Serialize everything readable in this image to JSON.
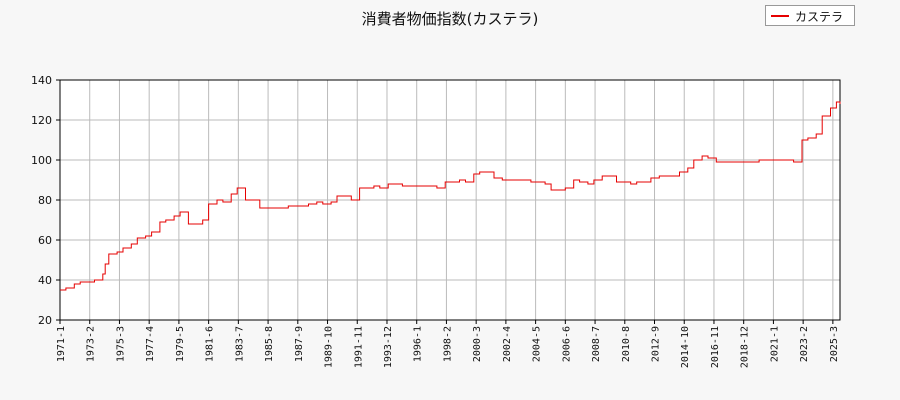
{
  "chart_data": {
    "type": "line",
    "title": "消費者物価指数(カステラ)",
    "xlabel": "",
    "ylabel": "",
    "ylim": [
      20,
      140
    ],
    "yticks": [
      20,
      40,
      60,
      80,
      100,
      120,
      140
    ],
    "grid": true,
    "legend_position": "top-right",
    "colors": {
      "series": "#e60000",
      "grid": "#bbbbbb",
      "axis": "#000000"
    },
    "x_tick_labels": [
      "1971-1",
      "1973-2",
      "1975-3",
      "1977-4",
      "1979-5",
      "1981-6",
      "1983-7",
      "1985-8",
      "1987-9",
      "1989-10",
      "1991-11",
      "1993-12",
      "1996-1",
      "1998-2",
      "2000-3",
      "2002-4",
      "2004-5",
      "2006-6",
      "2008-7",
      "2010-8",
      "2012-9",
      "2014-10",
      "2016-11",
      "2018-12",
      "2021-1",
      "2023-2",
      "2025-3"
    ],
    "series": [
      {
        "name": "カステラ",
        "x": [
          "1971-1",
          "1971-6",
          "1972-1",
          "1972-6",
          "1973-1",
          "1973-6",
          "1974-1",
          "1974-3",
          "1974-6",
          "1975-1",
          "1975-6",
          "1976-1",
          "1976-6",
          "1977-1",
          "1977-6",
          "1978-1",
          "1978-6",
          "1979-1",
          "1979-6",
          "1980-1",
          "1980-6",
          "1981-1",
          "1981-6",
          "1982-1",
          "1982-6",
          "1983-1",
          "1983-6",
          "1984-1",
          "1985-1",
          "1986-1",
          "1987-1",
          "1988-1",
          "1988-6",
          "1989-1",
          "1989-6",
          "1990-1",
          "1990-6",
          "1991-1",
          "1991-6",
          "1992-1",
          "1993-1",
          "1993-6",
          "1994-1",
          "1995-1",
          "1996-1",
          "1997-1",
          "1997-6",
          "1998-1",
          "1999-1",
          "1999-6",
          "2000-1",
          "2000-6",
          "2001-1",
          "2001-6",
          "2002-1",
          "2003-1",
          "2004-1",
          "2004-6",
          "2005-1",
          "2005-6",
          "2006-1",
          "2006-6",
          "2007-1",
          "2007-6",
          "2008-1",
          "2008-6",
          "2009-1",
          "2010-1",
          "2011-1",
          "2011-6",
          "2012-1",
          "2012-6",
          "2013-1",
          "2014-1",
          "2014-6",
          "2015-1",
          "2015-6",
          "2016-1",
          "2016-6",
          "2017-1",
          "2018-1",
          "2019-1",
          "2020-1",
          "2021-1",
          "2021-6",
          "2022-1",
          "2022-6",
          "2023-1",
          "2023-6",
          "2024-1",
          "2024-6",
          "2025-1",
          "2025-6",
          "2025-9"
        ],
        "y": [
          35,
          36,
          38,
          39,
          39,
          40,
          43,
          48,
          53,
          54,
          56,
          58,
          61,
          62,
          64,
          69,
          70,
          72,
          74,
          68,
          68,
          70,
          78,
          80,
          79,
          83,
          86,
          80,
          76,
          76,
          77,
          77,
          78,
          79,
          78,
          79,
          82,
          82,
          80,
          86,
          87,
          86,
          88,
          87,
          87,
          87,
          86,
          89,
          90,
          89,
          93,
          94,
          94,
          91,
          90,
          90,
          89,
          89,
          88,
          85,
          85,
          86,
          90,
          89,
          88,
          90,
          92,
          89,
          88,
          89,
          89,
          91,
          92,
          92,
          94,
          96,
          100,
          102,
          101,
          99,
          99,
          99,
          100,
          100,
          100,
          100,
          99,
          110,
          111,
          113,
          122,
          126,
          129,
          128
        ]
      }
    ]
  }
}
